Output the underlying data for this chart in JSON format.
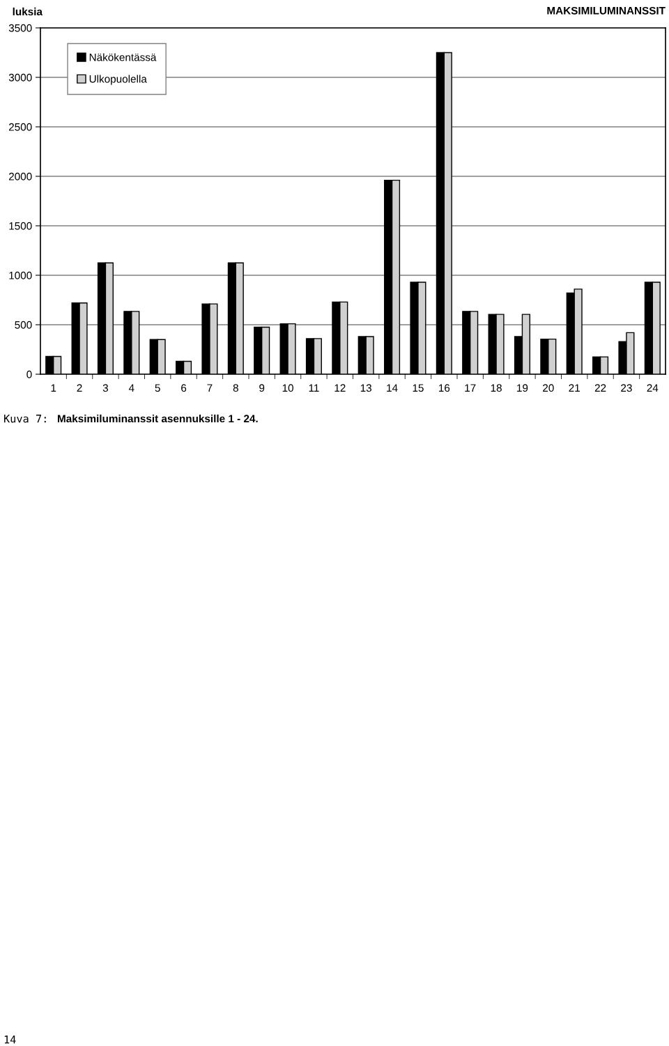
{
  "chart_data": {
    "type": "bar",
    "title": "MAKSIMILUMINANSSIT",
    "ylabel": "luksia",
    "categories": [
      "1",
      "2",
      "3",
      "4",
      "5",
      "6",
      "7",
      "8",
      "9",
      "10",
      "11",
      "12",
      "13",
      "14",
      "15",
      "16",
      "17",
      "18",
      "19",
      "20",
      "21",
      "22",
      "23",
      "24"
    ],
    "series": [
      {
        "name": "Näkökentässä",
        "color": "#000000",
        "values": [
          180,
          720,
          1125,
          635,
          350,
          130,
          710,
          1125,
          475,
          510,
          360,
          730,
          380,
          1960,
          930,
          3250,
          635,
          605,
          380,
          355,
          820,
          175,
          330,
          930
        ]
      },
      {
        "name": "Ulkopuolella",
        "color": "#d0d0d0",
        "values": [
          180,
          720,
          1125,
          635,
          350,
          130,
          710,
          1125,
          475,
          510,
          360,
          730,
          380,
          1960,
          930,
          3250,
          635,
          605,
          605,
          355,
          860,
          175,
          420,
          930
        ]
      }
    ],
    "ylim": [
      0,
      3500
    ],
    "yticks": [
      0,
      500,
      1000,
      1500,
      2000,
      2500,
      3000,
      3500
    ],
    "grid": "y",
    "legend": "top left",
    "annotations": [
      "Kuva 7:",
      "Maksimiluminanssit asennuksille 1 - 24.",
      "14"
    ]
  }
}
